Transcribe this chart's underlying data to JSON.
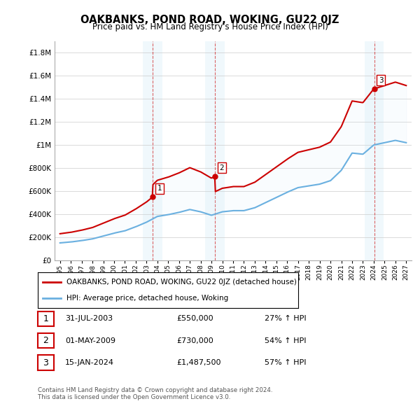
{
  "title": "OAKBANKS, POND ROAD, WOKING, GU22 0JZ",
  "subtitle": "Price paid vs. HM Land Registry's House Price Index (HPI)",
  "legend_line1": "OAKBANKS, POND ROAD, WOKING, GU22 0JZ (detached house)",
  "legend_line2": "HPI: Average price, detached house, Woking",
  "footer1": "Contains HM Land Registry data © Crown copyright and database right 2024.",
  "footer2": "This data is licensed under the Open Government Licence v3.0.",
  "transactions": [
    {
      "num": 1,
      "date": "31-JUL-2003",
      "price": "£550,000",
      "hpi": "27% ↑ HPI"
    },
    {
      "num": 2,
      "date": "01-MAY-2009",
      "price": "£730,000",
      "hpi": "54% ↑ HPI"
    },
    {
      "num": 3,
      "date": "15-JAN-2024",
      "price": "£1,487,500",
      "hpi": "57% ↑ HPI"
    }
  ],
  "sale_dates_year": [
    2003.58,
    2009.33,
    2024.04
  ],
  "sale_prices": [
    550000,
    730000,
    1487500
  ],
  "hpi_line_color": "#6ab0e0",
  "price_line_color": "#cc0000",
  "shading_color": "#d0e8f8",
  "marker_color": "#cc0000",
  "ylim": [
    0,
    1900000
  ],
  "yticks": [
    0,
    200000,
    400000,
    600000,
    800000,
    1000000,
    1200000,
    1400000,
    1600000,
    1800000
  ],
  "xlim_start": 1994.5,
  "xlim_end": 2027.5,
  "background_color": "#ffffff",
  "grid_color": "#cccccc"
}
